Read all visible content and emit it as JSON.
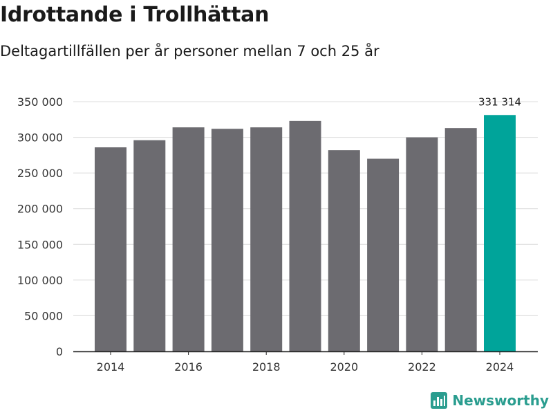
{
  "header": {
    "title": "Idrottande i Trollhättan",
    "subtitle": "Deltagartillfällen per år personer mellan 7 och 25 år"
  },
  "brand": {
    "name": "Newsworthy",
    "icon": "newsworthy-logo-icon",
    "color": "#2a9d8f"
  },
  "chart_data": {
    "type": "bar",
    "title": "Idrottande i Trollhättan",
    "subtitle": "Deltagartillfällen per år personer mellan 7 och 25 år",
    "xlabel": "",
    "ylabel": "",
    "categories": [
      2014,
      2015,
      2016,
      2017,
      2018,
      2019,
      2020,
      2021,
      2022,
      2023,
      2024
    ],
    "values": [
      286000,
      296000,
      314000,
      312000,
      314000,
      323000,
      282000,
      270000,
      300000,
      313000,
      331314
    ],
    "ylim": [
      0,
      350000
    ],
    "yticks": [
      0,
      50000,
      100000,
      150000,
      200000,
      250000,
      300000,
      350000
    ],
    "ytick_labels": [
      "0",
      "50 000",
      "100 000",
      "150 000",
      "200 000",
      "250 000",
      "300 000",
      "350 000"
    ],
    "xtick_values": [
      2014,
      2016,
      2018,
      2020,
      2022,
      2024
    ],
    "xtick_labels": [
      "2014",
      "2016",
      "2018",
      "2020",
      "2022",
      "2024"
    ],
    "grid": true,
    "bar_color": "#6c6b70",
    "highlight_color": "#00a49a",
    "highlight_category": 2024,
    "annotation": {
      "category": 2024,
      "text": "331 314"
    }
  }
}
